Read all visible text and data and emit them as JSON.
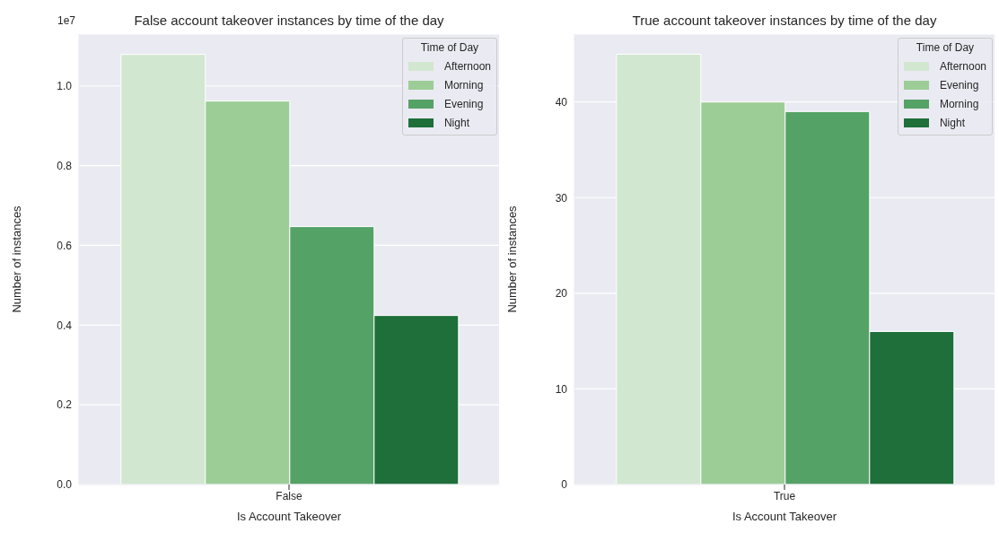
{
  "chart_data": [
    {
      "type": "bar",
      "title": "False account takeover instances by time of the day",
      "xlabel": "Is Account Takeover",
      "ylabel": "Number of instances",
      "categories": [
        "False"
      ],
      "legend_title": "Time of Day",
      "legend": "top right",
      "grid": "y",
      "ylim": [
        0,
        1.13
      ],
      "yticks": [
        {
          "value": 0,
          "label": "0.0"
        },
        {
          "value": 0.2,
          "label": "0.2"
        },
        {
          "value": 0.4,
          "label": "0.4"
        },
        {
          "value": 0.6,
          "label": "0.6"
        },
        {
          "value": 0.8,
          "label": "0.8"
        },
        {
          "value": 1,
          "label": "1.0"
        }
      ],
      "annotations": [
        "1e7"
      ],
      "series": [
        {
          "name": "Afternoon",
          "color": "#d2e7cf",
          "values": [
            1.079
          ]
        },
        {
          "name": "Morning",
          "color": "#9ccd97",
          "values": [
            0.962
          ]
        },
        {
          "name": "Evening",
          "color": "#55a267",
          "values": [
            0.647
          ]
        },
        {
          "name": "Night",
          "color": "#1e6f3a",
          "values": [
            0.424
          ]
        }
      ]
    },
    {
      "type": "bar",
      "title": "True account takeover instances by time of the day",
      "xlabel": "Is Account Takeover",
      "ylabel": "Number of instances",
      "categories": [
        "True"
      ],
      "legend_title": "Time of Day",
      "legend": "top right",
      "grid": "y",
      "ylim": [
        0,
        47.1
      ],
      "yticks": [
        0,
        10,
        20,
        30,
        40
      ],
      "series": [
        {
          "name": "Afternoon",
          "color": "#d2e7cf",
          "values": [
            45
          ]
        },
        {
          "name": "Evening",
          "color": "#9ccd97",
          "values": [
            40
          ]
        },
        {
          "name": "Morning",
          "color": "#55a267",
          "values": [
            39
          ]
        },
        {
          "name": "Night",
          "color": "#1e6f3a",
          "values": [
            16
          ]
        }
      ]
    }
  ]
}
